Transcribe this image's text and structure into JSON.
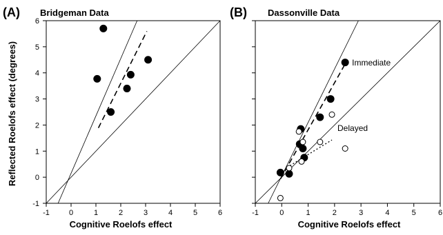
{
  "chart_data": [
    {
      "type": "scatter",
      "panel_label": "(A)",
      "title": "Bridgeman Data",
      "xlabel": "Cognitive Roelofs effect",
      "ylabel": "Reflected Roelofs effect (degrees)",
      "xlim": [
        -1,
        6
      ],
      "ylim": [
        -1,
        6
      ],
      "xticks": [
        "-1",
        "0",
        "1",
        "2",
        "3",
        "4",
        "5",
        "6"
      ],
      "yticks": [
        "-1",
        "0",
        "1",
        "2",
        "3",
        "4",
        "5",
        "6"
      ],
      "grid": false,
      "reference_lines": [
        {
          "kind": "solid",
          "slope": 1,
          "intercept": 0
        },
        {
          "kind": "solid",
          "slope": 2.2,
          "intercept": 0.15
        }
      ],
      "series": [
        {
          "marker": "filled-circle",
          "points": [
            [
              1.3,
              5.7
            ],
            [
              1.05,
              3.77
            ],
            [
              2.4,
              3.93
            ],
            [
              2.25,
              3.4
            ],
            [
              1.6,
              2.5
            ],
            [
              3.1,
              4.5
            ]
          ],
          "fit": {
            "kind": "dashed",
            "x_range": [
              1.1,
              3.05
            ],
            "slope": 1.9,
            "intercept": -0.2
          }
        }
      ],
      "annotations": []
    },
    {
      "type": "scatter",
      "panel_label": "(B)",
      "title": "Dassonville Data",
      "xlabel": "Cognitive Roelofs effect",
      "ylabel": "",
      "xlim": [
        -1,
        6
      ],
      "ylim": [
        -1,
        6
      ],
      "xticks": [
        "-1",
        "0",
        "1",
        "2",
        "3",
        "4",
        "5",
        "6"
      ],
      "yticks": [],
      "grid": false,
      "reference_lines": [
        {
          "kind": "solid",
          "slope": 1,
          "intercept": 0
        },
        {
          "kind": "solid",
          "slope": 2.05,
          "intercept": 0.05
        }
      ],
      "series": [
        {
          "marker": "filled-circle",
          "points": [
            [
              2.4,
              4.4
            ],
            [
              1.85,
              3.0
            ],
            [
              1.45,
              2.3
            ],
            [
              0.72,
              1.85
            ],
            [
              0.68,
              1.27
            ],
            [
              0.8,
              1.1
            ],
            [
              0.85,
              0.75
            ],
            [
              -0.05,
              0.18
            ],
            [
              0.28,
              0.13
            ]
          ],
          "fit": {
            "kind": "dashed",
            "x_range": [
              -0.05,
              2.4
            ],
            "slope": 1.8,
            "intercept": 0.02
          }
        },
        {
          "marker": "open-circle",
          "points": [
            [
              0.65,
              1.75
            ],
            [
              0.8,
              1.35
            ],
            [
              1.9,
              2.4
            ],
            [
              1.45,
              1.35
            ],
            [
              0.75,
              0.6
            ],
            [
              2.4,
              1.1
            ],
            [
              0.28,
              0.35
            ],
            [
              -0.05,
              -0.8
            ]
          ],
          "fit": {
            "kind": "dotted",
            "x_range": [
              0.2,
              1.9
            ],
            "slope": 0.62,
            "intercept": 0.25
          }
        }
      ],
      "annotations": [
        "Immediate",
        "Delayed"
      ]
    }
  ]
}
